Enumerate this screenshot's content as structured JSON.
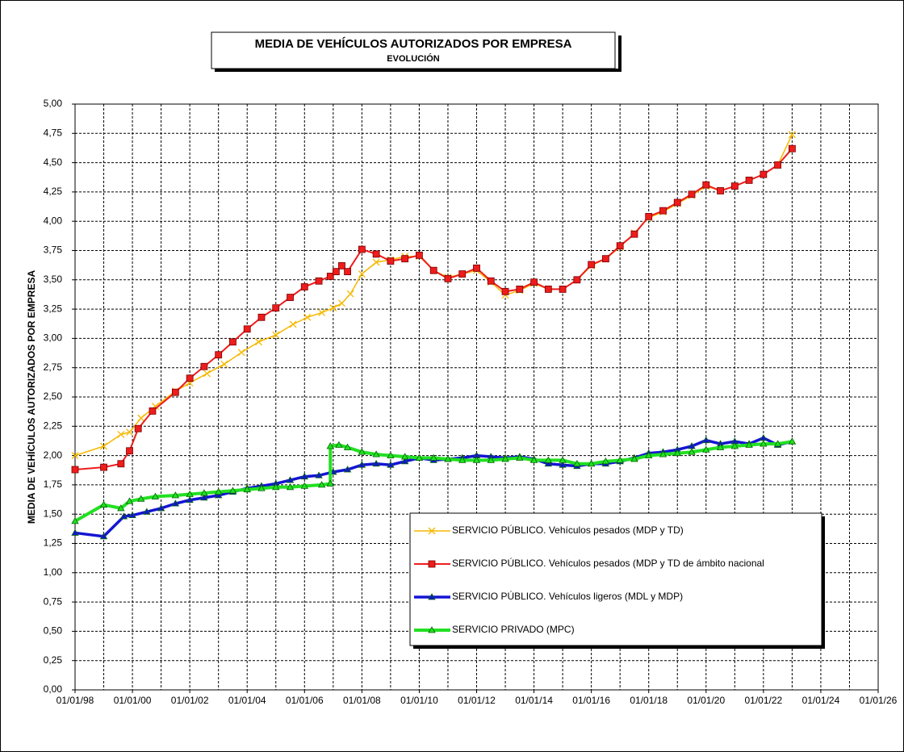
{
  "chart_data": {
    "type": "line",
    "title": "MEDIA DE VEHÍCULOS AUTORIZADOS POR EMPRESA",
    "subtitle": "EVOLUCIÓN",
    "y_label": "MEDIA DE VEHÍCULOS  AUTORIZADOS  POR EMPRESA",
    "xlim": [
      1998,
      2026
    ],
    "xticks": [
      {
        "value": 1998,
        "label": "01/01/98"
      },
      {
        "value": 2000,
        "label": "01/01/00"
      },
      {
        "value": 2002,
        "label": "01/01/02"
      },
      {
        "value": 2004,
        "label": "01/01/04"
      },
      {
        "value": 2006,
        "label": "01/01/06"
      },
      {
        "value": 2008,
        "label": "01/01/08"
      },
      {
        "value": 2010,
        "label": "01/01/10"
      },
      {
        "value": 2012,
        "label": "01/01/12"
      },
      {
        "value": 2014,
        "label": "01/01/14"
      },
      {
        "value": 2016,
        "label": "01/01/16"
      },
      {
        "value": 2018,
        "label": "01/01/18"
      },
      {
        "value": 2020,
        "label": "01/01/20"
      },
      {
        "value": 2022,
        "label": "01/01/22"
      },
      {
        "value": 2024,
        "label": "01/01/24"
      },
      {
        "value": 2026,
        "label": "01/01/26"
      }
    ],
    "ylim": [
      0,
      5
    ],
    "yticks": [
      {
        "value": 0,
        "label": "0,00"
      },
      {
        "value": 0.25,
        "label": "0,25"
      },
      {
        "value": 0.5,
        "label": "0,50"
      },
      {
        "value": 0.75,
        "label": "0,75"
      },
      {
        "value": 1,
        "label": "1,00"
      },
      {
        "value": 1.25,
        "label": "1,25"
      },
      {
        "value": 1.5,
        "label": "1,50"
      },
      {
        "value": 1.75,
        "label": "1,75"
      },
      {
        "value": 2,
        "label": "2,00"
      },
      {
        "value": 2.25,
        "label": "2,25"
      },
      {
        "value": 2.5,
        "label": "2,50"
      },
      {
        "value": 2.75,
        "label": "2,75"
      },
      {
        "value": 3,
        "label": "3,00"
      },
      {
        "value": 3.25,
        "label": "3,25"
      },
      {
        "value": 3.5,
        "label": "3,50"
      },
      {
        "value": 3.75,
        "label": "3,75"
      },
      {
        "value": 4,
        "label": "4,00"
      },
      {
        "value": 4.25,
        "label": "4,25"
      },
      {
        "value": 4.5,
        "label": "4,50"
      },
      {
        "value": 4.75,
        "label": "4,75"
      },
      {
        "value": 5,
        "label": "5,00"
      }
    ],
    "grid": true,
    "series": [
      {
        "name": "SERVICIO PÚBLICO. Vehículos pesados (MDP y TD)",
        "color": "#f5b800",
        "marker": "x",
        "x": [
          1998,
          1999,
          1999.6,
          1999.9,
          2000.3,
          2000.8,
          2001.5,
          2002,
          2002.6,
          2003.2,
          2003.8,
          2004.4,
          2005,
          2005.6,
          2006.1,
          2006.6,
          2007,
          2007.3,
          2007.6,
          2008,
          2008.5,
          2009,
          2009.5,
          2010,
          2010.5,
          2011,
          2011.5,
          2012,
          2012.5,
          2013,
          2013.5,
          2014,
          2014.5,
          2015,
          2015.5,
          2016,
          2016.5,
          2017,
          2017.5,
          2018,
          2018.5,
          2019,
          2019.5,
          2020,
          2020.5,
          2021,
          2021.5,
          2022,
          2022.5,
          2023
        ],
        "values": [
          2.0,
          2.08,
          2.18,
          2.2,
          2.32,
          2.42,
          2.55,
          2.62,
          2.7,
          2.78,
          2.88,
          2.97,
          3.03,
          3.12,
          3.18,
          3.22,
          3.26,
          3.3,
          3.38,
          3.55,
          3.65,
          3.67,
          3.7,
          3.7,
          3.58,
          3.52,
          3.55,
          3.58,
          3.48,
          3.37,
          3.41,
          3.47,
          3.42,
          3.42,
          3.5,
          3.62,
          3.68,
          3.78,
          3.9,
          4.03,
          4.08,
          4.15,
          4.22,
          4.3,
          4.26,
          4.3,
          4.35,
          4.4,
          4.48,
          4.74
        ]
      },
      {
        "name": "SERVICIO PÚBLICO. Vehículos pesados (MDP y TD de ámbito nacional",
        "color": "#ee1c1c",
        "marker": "square",
        "x": [
          1998,
          1999,
          1999.6,
          1999.9,
          2000.2,
          2000.7,
          2001.5,
          2002,
          2002.5,
          2003,
          2003.5,
          2004,
          2004.5,
          2005,
          2005.5,
          2006,
          2006.5,
          2006.9,
          2007.1,
          2007.3,
          2007.5,
          2008,
          2008.5,
          2009,
          2009.5,
          2010,
          2010.5,
          2011,
          2011.5,
          2012,
          2012.5,
          2013,
          2013.5,
          2014,
          2014.5,
          2015,
          2015.5,
          2016,
          2016.5,
          2017,
          2017.5,
          2018,
          2018.5,
          2019,
          2019.5,
          2020,
          2020.5,
          2021,
          2021.5,
          2022,
          2022.5,
          2023
        ],
        "values": [
          1.88,
          1.9,
          1.93,
          2.04,
          2.23,
          2.38,
          2.54,
          2.66,
          2.76,
          2.86,
          2.97,
          3.08,
          3.18,
          3.26,
          3.35,
          3.44,
          3.49,
          3.53,
          3.57,
          3.62,
          3.57,
          3.76,
          3.72,
          3.66,
          3.68,
          3.71,
          3.58,
          3.51,
          3.55,
          3.6,
          3.49,
          3.4,
          3.42,
          3.48,
          3.42,
          3.42,
          3.5,
          3.63,
          3.68,
          3.79,
          3.89,
          4.04,
          4.09,
          4.16,
          4.23,
          4.31,
          4.26,
          4.3,
          4.35,
          4.4,
          4.48,
          4.62
        ]
      },
      {
        "name": "SERVICIO PÚBLICO. Vehículos ligeros (MDL y MDP)",
        "color": "#1414d4",
        "marker": "triangle",
        "x": [
          1998,
          1999,
          1999.7,
          2000,
          2000.5,
          2001,
          2001.5,
          2002,
          2002.5,
          2003,
          2003.5,
          2004,
          2004.5,
          2005,
          2005.5,
          2006,
          2006.5,
          2007,
          2007.5,
          2008,
          2008.5,
          2009,
          2009.5,
          2010,
          2010.5,
          2011,
          2011.5,
          2012,
          2012.5,
          2013,
          2013.5,
          2014,
          2014.5,
          2015,
          2015.5,
          2016,
          2016.5,
          2017,
          2017.5,
          2018,
          2018.5,
          2019,
          2019.5,
          2020,
          2020.5,
          2021,
          2021.5,
          2022,
          2022.5,
          2023
        ],
        "values": [
          1.34,
          1.31,
          1.48,
          1.49,
          1.52,
          1.55,
          1.59,
          1.62,
          1.64,
          1.66,
          1.69,
          1.72,
          1.74,
          1.76,
          1.79,
          1.82,
          1.83,
          1.86,
          1.88,
          1.92,
          1.93,
          1.92,
          1.95,
          1.98,
          1.96,
          1.97,
          1.98,
          2.0,
          1.99,
          1.98,
          1.99,
          1.97,
          1.93,
          1.92,
          1.91,
          1.93,
          1.93,
          1.95,
          1.98,
          2.02,
          2.03,
          2.05,
          2.08,
          2.13,
          2.1,
          2.12,
          2.1,
          2.15,
          2.09,
          2.12
        ]
      },
      {
        "name": "SERVICIO PRIVADO (MPC)",
        "color": "#22e022",
        "marker": "triangle",
        "x": [
          1998,
          1999,
          1999.6,
          1999.9,
          2000.3,
          2000.8,
          2001.5,
          2002,
          2002.5,
          2003,
          2003.5,
          2004,
          2004.5,
          2005,
          2005.5,
          2006,
          2006.6,
          2006.9,
          2006.9,
          2007.2,
          2007.5,
          2008,
          2008.5,
          2009,
          2009.5,
          2010,
          2010.5,
          2011,
          2011.5,
          2012,
          2012.5,
          2013,
          2013.5,
          2014,
          2014.5,
          2015,
          2015.5,
          2016,
          2016.5,
          2017,
          2017.5,
          2018,
          2018.5,
          2019,
          2019.5,
          2020,
          2020.5,
          2021,
          2021.5,
          2022,
          2022.5,
          2023
        ],
        "values": [
          1.44,
          1.58,
          1.55,
          1.61,
          1.63,
          1.65,
          1.66,
          1.67,
          1.68,
          1.69,
          1.7,
          1.71,
          1.72,
          1.73,
          1.73,
          1.74,
          1.75,
          1.76,
          2.08,
          2.09,
          2.07,
          2.03,
          2.01,
          2.0,
          1.99,
          1.98,
          1.98,
          1.97,
          1.96,
          1.96,
          1.96,
          1.97,
          1.98,
          1.96,
          1.96,
          1.96,
          1.93,
          1.93,
          1.95,
          1.96,
          1.97,
          2.0,
          2.01,
          2.02,
          2.03,
          2.05,
          2.07,
          2.08,
          2.09,
          2.1,
          2.1,
          2.12
        ]
      }
    ]
  }
}
